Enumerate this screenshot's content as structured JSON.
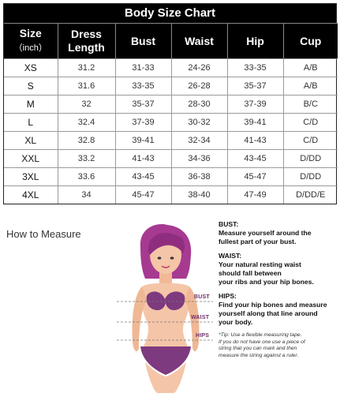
{
  "chart": {
    "title": "Body Size Chart",
    "columns": [
      {
        "line1": "Size",
        "line2": "（inch）"
      },
      {
        "line1": "Dress",
        "line2": "Length"
      },
      {
        "line1": "Bust",
        "line2": ""
      },
      {
        "line1": "Waist",
        "line2": ""
      },
      {
        "line1": "Hip",
        "line2": ""
      },
      {
        "line1": "Cup",
        "line2": ""
      }
    ],
    "rows": [
      [
        "XS",
        "31.2",
        "31-33",
        "24-26",
        "33-35",
        "A/B"
      ],
      [
        "S",
        "31.6",
        "33-35",
        "26-28",
        "35-37",
        "A/B"
      ],
      [
        "M",
        "32",
        "35-37",
        "28-30",
        "37-39",
        "B/C"
      ],
      [
        "L",
        "32.4",
        "37-39",
        "30-32",
        "39-41",
        "C/D"
      ],
      [
        "XL",
        "32.8",
        "39-41",
        "32-34",
        "41-43",
        "C/D"
      ],
      [
        "XXL",
        "33.2",
        "41-43",
        "34-36",
        "43-45",
        "D/DD"
      ],
      [
        "3XL",
        "33.6",
        "43-45",
        "36-38",
        "45-47",
        "D/DD"
      ],
      [
        "4XL",
        "34",
        "45-47",
        "38-40",
        "47-49",
        "D/DD/E"
      ]
    ]
  },
  "measure": {
    "title": "How to Measure",
    "figure_labels": {
      "bust": "BUST",
      "waist": "WAIST",
      "hips": "HIPS"
    },
    "notes": [
      {
        "heading": "BUST:",
        "lines": [
          "Measure yourself around the",
          "fullest part of your bust."
        ]
      },
      {
        "heading": "WAIST:",
        "lines": [
          "Your natural resting waist",
          "should fall between",
          "your ribs and your hip bones."
        ]
      },
      {
        "heading": "HIPS:",
        "lines": [
          "Find your hip bones and measure",
          "yourself along that line around",
          "your body."
        ]
      }
    ],
    "tip_lines": [
      "*Tip: Use a flexible measuring tape.",
      "If you do not have one use a piece of",
      "string that you can mark and then",
      "measure the string against a ruler."
    ]
  },
  "colors": {
    "hair": "#a63a91",
    "skin": "#f5c5a8",
    "garment": "#7e3a7e",
    "label": "#6f2d6f"
  }
}
